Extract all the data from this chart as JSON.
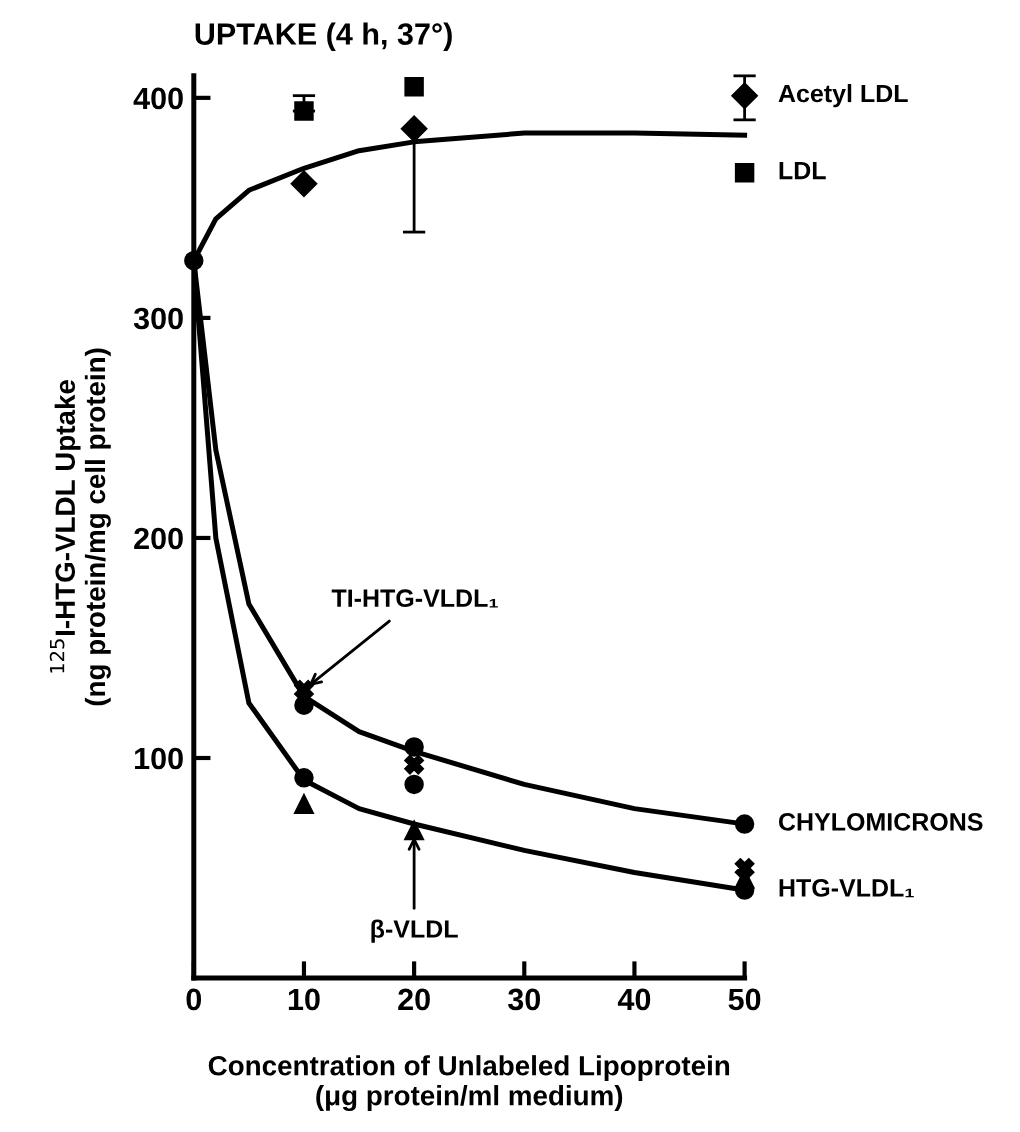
{
  "chart_data": {
    "type": "scatter",
    "title": "UPTAKE (4 h, 37°)",
    "xlabel": "Concentration of Unlabeled Lipoprotein\n(μg protein/ml medium)",
    "ylabel": "$^{125}$I-HTG-VLDL Uptake\n(ng protein/mg cell protein)",
    "xlim": [
      0,
      50
    ],
    "ylim": [
      0,
      410
    ],
    "xticks": [
      0,
      10,
      20,
      30,
      40,
      50
    ],
    "yticks": [
      100,
      200,
      300,
      400
    ],
    "grid": false,
    "legend": false,
    "series": [
      {
        "name": "Acetyl LDL",
        "color": "#000000",
        "marker": "diamond",
        "x": [
          10,
          20,
          50
        ],
        "values": [
          361,
          386,
          401
        ],
        "errors": [
          null,
          [
            339,
            386
          ],
          [
            390,
            410
          ]
        ]
      },
      {
        "name": "LDL",
        "color": "#000000",
        "marker": "square",
        "x": [
          10,
          20,
          50
        ],
        "values": [
          394,
          405,
          366
        ],
        "errors": [
          [
            394,
            401
          ],
          null,
          null
        ]
      },
      {
        "name": "CHYLOMICRONS",
        "color": "#000000",
        "marker": "circle",
        "x": [
          10,
          20,
          50
        ],
        "values": [
          124,
          105,
          70
        ]
      },
      {
        "color": "#000000",
        "marker": "cross",
        "x": [
          10,
          20,
          50
        ],
        "values": [
          131,
          97,
          50
        ]
      },
      {
        "name": "HTG-VLDL₁",
        "color": "#000000",
        "marker": "circle",
        "x": [
          0,
          10,
          20,
          50
        ],
        "values": [
          326,
          91,
          88,
          40
        ]
      },
      {
        "color": "#000000",
        "marker": "triangle",
        "x": [
          10,
          20,
          50
        ],
        "values": [
          79,
          67,
          45
        ]
      },
      {
        "type": "line",
        "color": "#000000",
        "marker": "none",
        "x": [
          0,
          2,
          5,
          10,
          15,
          20,
          30,
          40,
          50
        ],
        "values": [
          326,
          345,
          358,
          368,
          376,
          380,
          384,
          384,
          383
        ]
      },
      {
        "type": "line",
        "color": "#000000",
        "marker": "none",
        "x": [
          0,
          2,
          5,
          10,
          15,
          20,
          30,
          40,
          50
        ],
        "values": [
          326,
          240,
          170,
          128,
          112,
          103,
          88,
          77,
          70
        ]
      },
      {
        "type": "line",
        "color": "#000000",
        "marker": "none",
        "x": [
          0,
          2,
          5,
          10,
          15,
          20,
          30,
          40,
          50
        ],
        "values": [
          326,
          200,
          125,
          90,
          77,
          70,
          58,
          48,
          40
        ]
      }
    ],
    "annotations": [
      {
        "text": "TI-HTG-VLDL₁",
        "x": 10,
        "y": 131
      },
      {
        "text": "β-VLDL",
        "x": 20,
        "y": 67
      }
    ]
  }
}
